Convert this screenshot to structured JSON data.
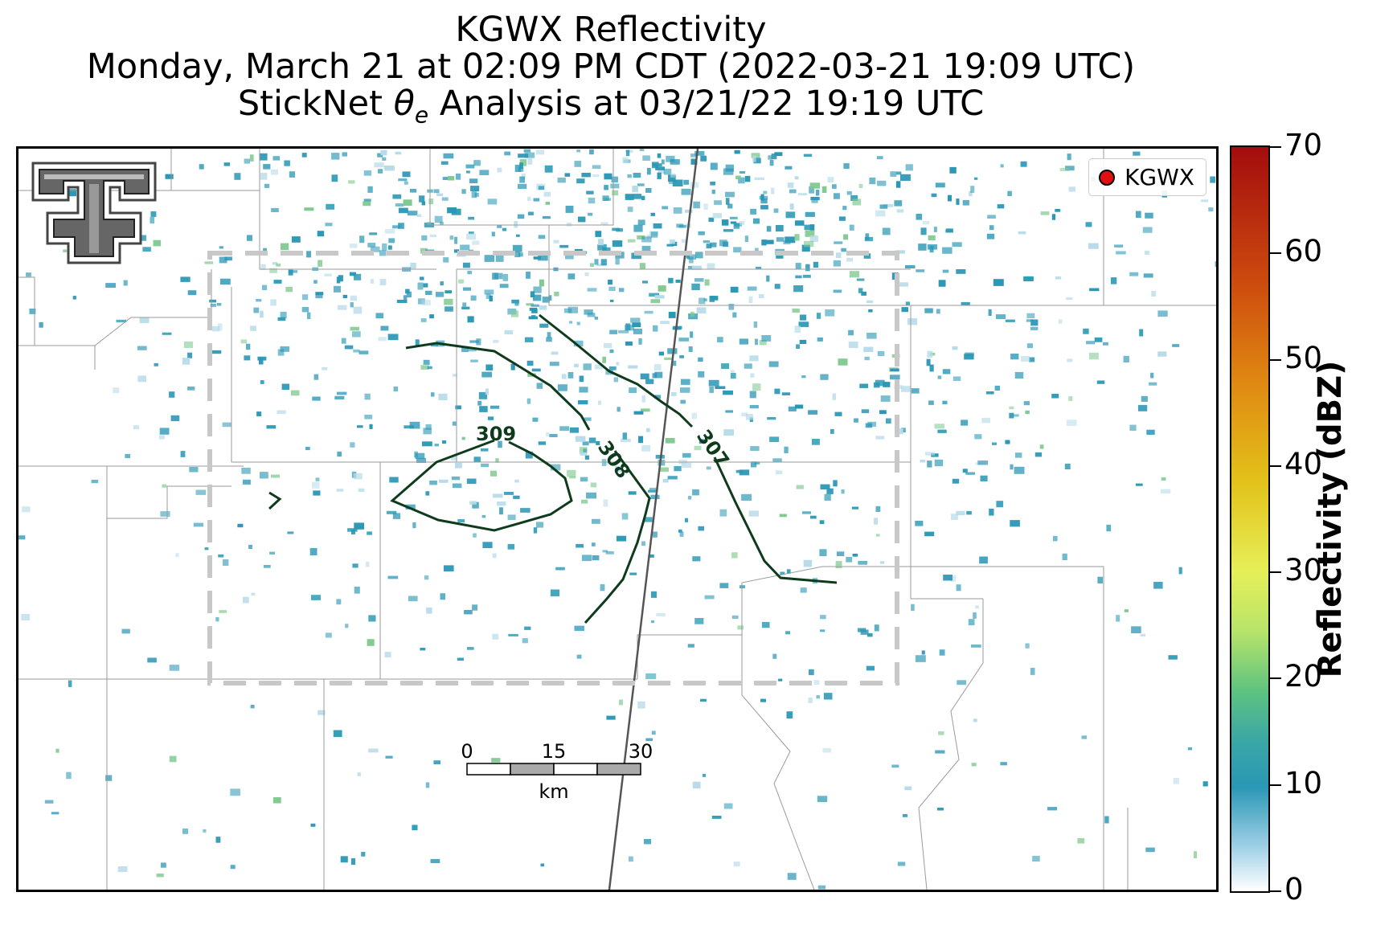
{
  "title": {
    "line1": "KGWX Reflectivity",
    "line2": "Monday, March 21 at 02:09 PM CDT (2022-03-21 19:09 UTC)",
    "line3_prefix": "StickNet ",
    "line3_symbol": "θ",
    "line3_subscript": "e",
    "line3_suffix": " Analysis at 03/21/22 19:19 UTC"
  },
  "legend": {
    "label": "KGWX"
  },
  "scale_bar": {
    "labels": [
      "0",
      "15",
      "30"
    ],
    "unit": "km"
  },
  "colorbar": {
    "label": "Reflectivity (dBZ)",
    "ticks": [
      "0",
      "10",
      "20",
      "30",
      "40",
      "50",
      "60",
      "70"
    ],
    "min": 0,
    "max": 70
  },
  "contours": [
    {
      "value": 309,
      "label": "309"
    },
    {
      "value": 308,
      "label": "308"
    },
    {
      "value": 307,
      "label": "307"
    }
  ],
  "colors": {
    "contour": "#0d3b1c",
    "analysis_box": "#c8c8c8",
    "radar_marker": "#e01010",
    "reflectivity_main": "#2a97b5"
  },
  "logo": {
    "text": "TT"
  }
}
